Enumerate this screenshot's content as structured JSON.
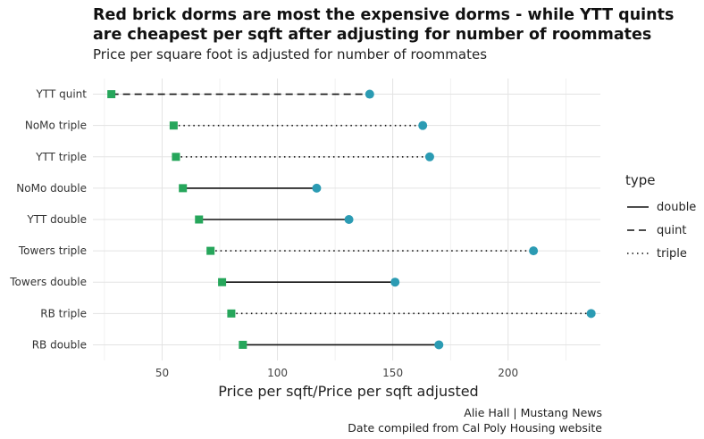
{
  "chart_data": {
    "type": "dumbbell",
    "title": "Red brick dorms are most the expensive  dorms - while YTT quints are cheapest per sqft after adjusting for number of roommates",
    "subtitle": "Price per square foot is adjusted for number of roommates",
    "xlabel": "Price per sqft/Price per sqft adjusted",
    "ylabel": "",
    "xlim": [
      20,
      240
    ],
    "xticks": [
      50,
      100,
      150,
      200
    ],
    "grid": true,
    "legend": {
      "title": "type",
      "position": "right",
      "entries": [
        {
          "label": "double",
          "dash": "solid"
        },
        {
          "label": "quint",
          "dash": "dashed"
        },
        {
          "label": "triple",
          "dash": "dotted"
        }
      ]
    },
    "colors": {
      "adjusted": "#26a65b",
      "unadjusted": "#2b9bb3",
      "line": "#111111",
      "grid": "#e3e3e3"
    },
    "rows": [
      {
        "label": "YTT quint",
        "type": "quint",
        "adjusted": 28,
        "unadjusted": 140
      },
      {
        "label": "NoMo triple",
        "type": "triple",
        "adjusted": 55,
        "unadjusted": 163
      },
      {
        "label": "YTT triple",
        "type": "triple",
        "adjusted": 56,
        "unadjusted": 166
      },
      {
        "label": "NoMo double",
        "type": "double",
        "adjusted": 59,
        "unadjusted": 117
      },
      {
        "label": "YTT double",
        "type": "double",
        "adjusted": 66,
        "unadjusted": 131
      },
      {
        "label": "Towers triple",
        "type": "triple",
        "adjusted": 71,
        "unadjusted": 211
      },
      {
        "label": "Towers double",
        "type": "double",
        "adjusted": 76,
        "unadjusted": 151
      },
      {
        "label": "RB triple",
        "type": "triple",
        "adjusted": 80,
        "unadjusted": 236
      },
      {
        "label": "RB double",
        "type": "double",
        "adjusted": 85,
        "unadjusted": 170
      }
    ]
  },
  "caption": {
    "line1": "Alie Hall | Mustang News",
    "line2": "Date compiled from Cal Poly Housing website"
  }
}
